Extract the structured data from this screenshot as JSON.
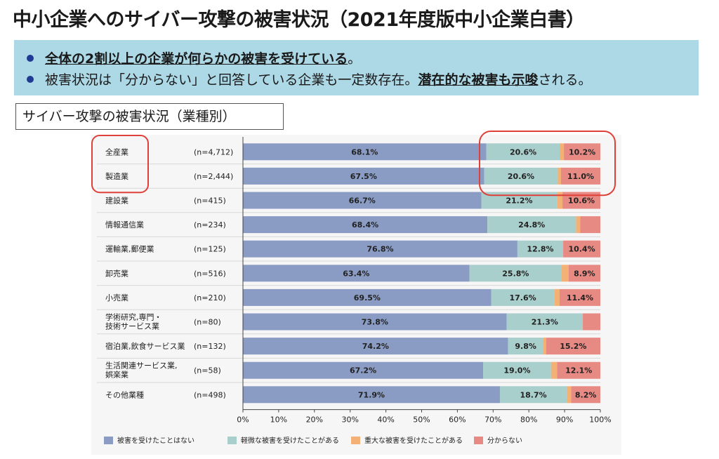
{
  "title": "中小企業へのサイバー攻撃の被害状況（2021年度版中小企業白書）",
  "banner": {
    "bullet1_em": "全体の2割以上の企業が何らかの被害を受けている",
    "bullet1_tail": "。",
    "bullet2_head": "被害状況は「分からない」と回答している企業も一定数存在。",
    "bullet2_em": "潜在的な被害も示唆",
    "bullet2_tail": "される。"
  },
  "subtitle": "サイバー攻撃の被害状況（業種別）",
  "colors": {
    "accent_dot": "#1f3a93",
    "banner_bg": "#add8e6",
    "highlight": "#e0403a"
  },
  "chart_data": {
    "type": "bar",
    "orientation": "horizontal-stacked-100",
    "categories": [
      {
        "label": [
          "全産業"
        ],
        "n": "(n=4,712)"
      },
      {
        "label": [
          "製造業"
        ],
        "n": "(n=2,444)"
      },
      {
        "label": [
          "建設業"
        ],
        "n": "(n=415)"
      },
      {
        "label": [
          "情報通信業"
        ],
        "n": "(n=234)"
      },
      {
        "label": [
          "運輸業,郵便業"
        ],
        "n": "(n=125)"
      },
      {
        "label": [
          "卸売業"
        ],
        "n": "(n=516)"
      },
      {
        "label": [
          "小売業"
        ],
        "n": "(n=210)"
      },
      {
        "label": [
          "学術研究,専門・",
          "技術サービス業"
        ],
        "n": "(n=80)"
      },
      {
        "label": [
          "宿泊業,飲食サービス業"
        ],
        "n": "(n=132)"
      },
      {
        "label": [
          "生活関連サービス業,",
          "娯楽業"
        ],
        "n": "(n=58)"
      },
      {
        "label": [
          "その他業種"
        ],
        "n": "(n=498)"
      }
    ],
    "series": [
      {
        "name": "被害を受けたことはない",
        "color": "#8a9cc4",
        "values": [
          68.1,
          67.5,
          66.7,
          68.4,
          76.8,
          63.4,
          69.5,
          73.8,
          74.2,
          67.2,
          71.9
        ],
        "labels": [
          "68.1%",
          "67.5%",
          "66.7%",
          "68.4%",
          "76.8%",
          "63.4%",
          "69.5%",
          "73.8%",
          "74.2%",
          "67.2%",
          "71.9%"
        ]
      },
      {
        "name": "軽微な被害を受けたことがある",
        "color": "#a9cfcc",
        "values": [
          20.6,
          20.6,
          21.2,
          24.8,
          12.8,
          25.8,
          17.6,
          21.3,
          9.8,
          19.0,
          18.7
        ],
        "labels": [
          "20.6%",
          "20.6%",
          "21.2%",
          "24.8%",
          "12.8%",
          "25.8%",
          "17.6%",
          "21.3%",
          "9.8%",
          "19.0%",
          "18.7%"
        ]
      },
      {
        "name": "重大な被害を受けたことがある",
        "color": "#f3b175",
        "values": [
          1.1,
          0.9,
          1.5,
          1.2,
          0.0,
          1.9,
          1.5,
          0.0,
          0.8,
          1.7,
          1.2
        ],
        "labels": [
          "",
          "",
          "",
          "",
          "",
          "",
          "",
          "",
          "",
          "",
          ""
        ]
      },
      {
        "name": "分からない",
        "color": "#e88a84",
        "values": [
          10.2,
          11.0,
          10.6,
          5.6,
          10.4,
          8.9,
          11.4,
          4.9,
          15.2,
          12.1,
          8.2
        ],
        "labels": [
          "10.2%",
          "11.0%",
          "10.6%",
          "",
          "10.4%",
          "8.9%",
          "11.4%",
          "",
          "15.2%",
          "12.1%",
          "8.2%"
        ]
      }
    ],
    "xlim": [
      0,
      100
    ],
    "xticks": [
      "0%",
      "10%",
      "20%",
      "30%",
      "40%",
      "50%",
      "60%",
      "70%",
      "80%",
      "90%",
      "100%"
    ],
    "legend_position": "bottom",
    "highlights": [
      "全産業・製造業のラベル",
      "全産業・製造業の被害割合"
    ]
  }
}
